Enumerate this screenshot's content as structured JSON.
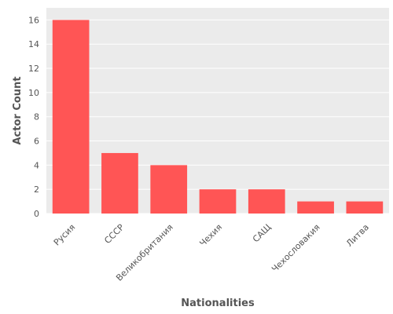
{
  "chart_data": {
    "type": "bar",
    "categories": [
      "Русия",
      "СССР",
      "Великобритания",
      "Чехия",
      "САЩ",
      "Чехословакия",
      "Литва"
    ],
    "values": [
      16,
      5,
      4,
      2,
      2,
      1,
      1
    ],
    "xlabel": "Nationalities",
    "ylabel": "Actor Count",
    "ylim": [
      0,
      17
    ],
    "yticks": [
      0,
      2,
      4,
      6,
      8,
      10,
      12,
      14,
      16
    ],
    "grid": true,
    "legend": "none",
    "colors": {
      "bar": "#ff5555",
      "plot_background": "#ebebeb",
      "grid": "#ffffff",
      "text": "#555555"
    }
  }
}
